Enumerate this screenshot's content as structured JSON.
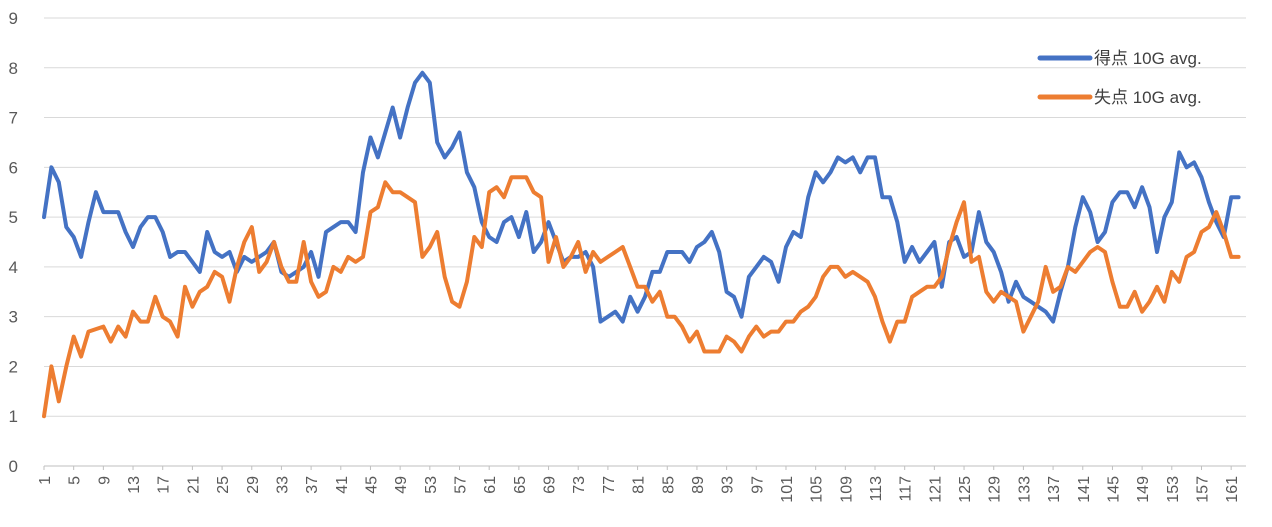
{
  "chart_data": {
    "type": "line",
    "title": "",
    "xlabel": "",
    "ylabel": "",
    "ylim": [
      0,
      9
    ],
    "yticks": [
      0,
      1,
      2,
      3,
      4,
      5,
      6,
      7,
      8,
      9
    ],
    "xlim": [
      1,
      163
    ],
    "xtick_labels": [
      "1",
      "5",
      "9",
      "13",
      "17",
      "21",
      "25",
      "29",
      "33",
      "37",
      "41",
      "45",
      "49",
      "53",
      "57",
      "61",
      "65",
      "69",
      "73",
      "77",
      "81",
      "85",
      "89",
      "93",
      "97",
      "101",
      "105",
      "109",
      "113",
      "117",
      "121",
      "125",
      "129",
      "133",
      "137",
      "141",
      "145",
      "149",
      "153",
      "157",
      "161"
    ],
    "grid": "horizontal",
    "legend_position": "top-right",
    "colors": {
      "series1": "#4472C4",
      "series2": "#ED7D31",
      "grid": "#D9D9D9",
      "axis": "#BFBFBF"
    },
    "series": [
      {
        "name": "得点 10G avg.",
        "color": "#4472C4",
        "points": [
          [
            1,
            5.0
          ],
          [
            2,
            6.0
          ],
          [
            3,
            5.7
          ],
          [
            4,
            4.8
          ],
          [
            5,
            4.6
          ],
          [
            6,
            4.2
          ],
          [
            7,
            4.9
          ],
          [
            8,
            5.5
          ],
          [
            9,
            5.1
          ],
          [
            10,
            5.1
          ],
          [
            11,
            5.1
          ],
          [
            12,
            4.7
          ],
          [
            13,
            4.4
          ],
          [
            14,
            4.8
          ],
          [
            15,
            5.0
          ],
          [
            16,
            5.0
          ],
          [
            17,
            4.7
          ],
          [
            18,
            4.2
          ],
          [
            19,
            4.3
          ],
          [
            20,
            4.3
          ],
          [
            21,
            4.1
          ],
          [
            22,
            3.9
          ],
          [
            23,
            4.7
          ],
          [
            24,
            4.3
          ],
          [
            25,
            4.2
          ],
          [
            26,
            4.3
          ],
          [
            27,
            3.9
          ],
          [
            28,
            4.2
          ],
          [
            29,
            4.1
          ],
          [
            30,
            4.2
          ],
          [
            31,
            4.3
          ],
          [
            32,
            4.5
          ],
          [
            33,
            3.9
          ],
          [
            34,
            3.8
          ],
          [
            35,
            3.9
          ],
          [
            36,
            4.0
          ],
          [
            37,
            4.3
          ],
          [
            38,
            3.8
          ],
          [
            39,
            4.7
          ],
          [
            40,
            4.8
          ],
          [
            41,
            4.9
          ],
          [
            42,
            4.9
          ],
          [
            43,
            4.7
          ],
          [
            44,
            5.9
          ],
          [
            45,
            6.6
          ],
          [
            46,
            6.2
          ],
          [
            47,
            6.7
          ],
          [
            48,
            7.2
          ],
          [
            49,
            6.6
          ],
          [
            50,
            7.2
          ],
          [
            51,
            7.7
          ],
          [
            52,
            7.9
          ],
          [
            53,
            7.7
          ],
          [
            54,
            6.5
          ],
          [
            55,
            6.2
          ],
          [
            56,
            6.4
          ],
          [
            57,
            6.7
          ],
          [
            58,
            5.9
          ],
          [
            59,
            5.6
          ],
          [
            60,
            4.9
          ],
          [
            61,
            4.6
          ],
          [
            62,
            4.5
          ],
          [
            63,
            4.9
          ],
          [
            64,
            5.0
          ],
          [
            65,
            4.6
          ],
          [
            66,
            5.1
          ],
          [
            67,
            4.3
          ],
          [
            68,
            4.5
          ],
          [
            69,
            4.9
          ],
          [
            70,
            4.5
          ],
          [
            71,
            4.1
          ],
          [
            72,
            4.2
          ],
          [
            73,
            4.2
          ],
          [
            74,
            4.3
          ],
          [
            75,
            4.0
          ],
          [
            76,
            2.9
          ],
          [
            77,
            3.0
          ],
          [
            78,
            3.1
          ],
          [
            79,
            2.9
          ],
          [
            80,
            3.4
          ],
          [
            81,
            3.1
          ],
          [
            82,
            3.4
          ],
          [
            83,
            3.9
          ],
          [
            84,
            3.9
          ],
          [
            85,
            4.3
          ],
          [
            86,
            4.3
          ],
          [
            87,
            4.3
          ],
          [
            88,
            4.1
          ],
          [
            89,
            4.4
          ],
          [
            90,
            4.5
          ],
          [
            91,
            4.7
          ],
          [
            92,
            4.3
          ],
          [
            93,
            3.5
          ],
          [
            94,
            3.4
          ],
          [
            95,
            3.0
          ],
          [
            96,
            3.8
          ],
          [
            97,
            4.0
          ],
          [
            98,
            4.2
          ],
          [
            99,
            4.1
          ],
          [
            100,
            3.7
          ],
          [
            101,
            4.4
          ],
          [
            102,
            4.7
          ],
          [
            103,
            4.6
          ],
          [
            104,
            5.4
          ],
          [
            105,
            5.9
          ],
          [
            106,
            5.7
          ],
          [
            107,
            5.9
          ],
          [
            108,
            6.2
          ],
          [
            109,
            6.1
          ],
          [
            110,
            6.2
          ],
          [
            111,
            5.9
          ],
          [
            112,
            6.2
          ],
          [
            113,
            6.2
          ],
          [
            114,
            5.4
          ],
          [
            115,
            5.4
          ],
          [
            116,
            4.9
          ],
          [
            117,
            4.1
          ],
          [
            118,
            4.4
          ],
          [
            119,
            4.1
          ],
          [
            120,
            4.3
          ],
          [
            121,
            4.5
          ],
          [
            122,
            3.6
          ],
          [
            123,
            4.5
          ],
          [
            124,
            4.6
          ],
          [
            125,
            4.2
          ],
          [
            126,
            4.3
          ],
          [
            127,
            5.1
          ],
          [
            128,
            4.5
          ],
          [
            129,
            4.3
          ],
          [
            130,
            3.9
          ],
          [
            131,
            3.3
          ],
          [
            132,
            3.7
          ],
          [
            133,
            3.4
          ],
          [
            134,
            3.3
          ],
          [
            135,
            3.2
          ],
          [
            136,
            3.1
          ],
          [
            137,
            2.9
          ],
          [
            138,
            3.5
          ],
          [
            139,
            4.0
          ],
          [
            140,
            4.8
          ],
          [
            141,
            5.4
          ],
          [
            142,
            5.1
          ],
          [
            143,
            4.5
          ],
          [
            144,
            4.7
          ],
          [
            145,
            5.3
          ],
          [
            146,
            5.5
          ],
          [
            147,
            5.5
          ],
          [
            148,
            5.2
          ],
          [
            149,
            5.6
          ],
          [
            150,
            5.2
          ],
          [
            151,
            4.3
          ],
          [
            152,
            5.0
          ],
          [
            153,
            5.3
          ],
          [
            154,
            6.3
          ],
          [
            155,
            6.0
          ],
          [
            156,
            6.1
          ],
          [
            157,
            5.8
          ],
          [
            158,
            5.3
          ],
          [
            159,
            4.9
          ],
          [
            160,
            4.6
          ],
          [
            161,
            5.4
          ],
          [
            162,
            5.4
          ]
        ]
      },
      {
        "name": "失点 10G avg.",
        "color": "#ED7D31",
        "points": [
          [
            1,
            1.0
          ],
          [
            2,
            2.0
          ],
          [
            3,
            1.3
          ],
          [
            4,
            2.0
          ],
          [
            5,
            2.6
          ],
          [
            6,
            2.2
          ],
          [
            7,
            2.7
          ],
          [
            8,
            2.75
          ],
          [
            9,
            2.8
          ],
          [
            10,
            2.5
          ],
          [
            11,
            2.8
          ],
          [
            12,
            2.6
          ],
          [
            13,
            3.1
          ],
          [
            14,
            2.9
          ],
          [
            15,
            2.9
          ],
          [
            16,
            3.4
          ],
          [
            17,
            3.0
          ],
          [
            18,
            2.9
          ],
          [
            19,
            2.6
          ],
          [
            20,
            3.6
          ],
          [
            21,
            3.2
          ],
          [
            22,
            3.5
          ],
          [
            23,
            3.6
          ],
          [
            24,
            3.9
          ],
          [
            25,
            3.8
          ],
          [
            26,
            3.3
          ],
          [
            27,
            4.0
          ],
          [
            28,
            4.5
          ],
          [
            29,
            4.8
          ],
          [
            30,
            3.9
          ],
          [
            31,
            4.1
          ],
          [
            32,
            4.5
          ],
          [
            33,
            4.0
          ],
          [
            34,
            3.7
          ],
          [
            35,
            3.7
          ],
          [
            36,
            4.5
          ],
          [
            37,
            3.7
          ],
          [
            38,
            3.4
          ],
          [
            39,
            3.5
          ],
          [
            40,
            4.0
          ],
          [
            41,
            3.9
          ],
          [
            42,
            4.2
          ],
          [
            43,
            4.1
          ],
          [
            44,
            4.2
          ],
          [
            45,
            5.1
          ],
          [
            46,
            5.2
          ],
          [
            47,
            5.7
          ],
          [
            48,
            5.5
          ],
          [
            49,
            5.5
          ],
          [
            50,
            5.4
          ],
          [
            51,
            5.3
          ],
          [
            52,
            4.2
          ],
          [
            53,
            4.4
          ],
          [
            54,
            4.7
          ],
          [
            55,
            3.8
          ],
          [
            56,
            3.3
          ],
          [
            57,
            3.2
          ],
          [
            58,
            3.7
          ],
          [
            59,
            4.6
          ],
          [
            60,
            4.4
          ],
          [
            61,
            5.5
          ],
          [
            62,
            5.6
          ],
          [
            63,
            5.4
          ],
          [
            64,
            5.8
          ],
          [
            65,
            5.8
          ],
          [
            66,
            5.8
          ],
          [
            67,
            5.5
          ],
          [
            68,
            5.4
          ],
          [
            69,
            4.1
          ],
          [
            70,
            4.6
          ],
          [
            71,
            4.0
          ],
          [
            72,
            4.2
          ],
          [
            73,
            4.5
          ],
          [
            74,
            3.9
          ],
          [
            75,
            4.3
          ],
          [
            76,
            4.1
          ],
          [
            77,
            4.2
          ],
          [
            78,
            4.3
          ],
          [
            79,
            4.4
          ],
          [
            80,
            4.0
          ],
          [
            81,
            3.6
          ],
          [
            82,
            3.6
          ],
          [
            83,
            3.3
          ],
          [
            84,
            3.5
          ],
          [
            85,
            3.0
          ],
          [
            86,
            3.0
          ],
          [
            87,
            2.8
          ],
          [
            88,
            2.5
          ],
          [
            89,
            2.7
          ],
          [
            90,
            2.3
          ],
          [
            91,
            2.3
          ],
          [
            92,
            2.3
          ],
          [
            93,
            2.6
          ],
          [
            94,
            2.5
          ],
          [
            95,
            2.3
          ],
          [
            96,
            2.6
          ],
          [
            97,
            2.8
          ],
          [
            98,
            2.6
          ],
          [
            99,
            2.7
          ],
          [
            100,
            2.7
          ],
          [
            101,
            2.9
          ],
          [
            102,
            2.9
          ],
          [
            103,
            3.1
          ],
          [
            104,
            3.2
          ],
          [
            105,
            3.4
          ],
          [
            106,
            3.8
          ],
          [
            107,
            4.0
          ],
          [
            108,
            4.0
          ],
          [
            109,
            3.8
          ],
          [
            110,
            3.9
          ],
          [
            111,
            3.8
          ],
          [
            112,
            3.7
          ],
          [
            113,
            3.4
          ],
          [
            114,
            2.9
          ],
          [
            115,
            2.5
          ],
          [
            116,
            2.9
          ],
          [
            117,
            2.9
          ],
          [
            118,
            3.4
          ],
          [
            119,
            3.5
          ],
          [
            120,
            3.6
          ],
          [
            121,
            3.6
          ],
          [
            122,
            3.8
          ],
          [
            123,
            4.4
          ],
          [
            124,
            4.9
          ],
          [
            125,
            5.3
          ],
          [
            126,
            4.1
          ],
          [
            127,
            4.2
          ],
          [
            128,
            3.5
          ],
          [
            129,
            3.3
          ],
          [
            130,
            3.5
          ],
          [
            131,
            3.4
          ],
          [
            132,
            3.3
          ],
          [
            133,
            2.7
          ],
          [
            134,
            3.0
          ],
          [
            135,
            3.3
          ],
          [
            136,
            4.0
          ],
          [
            137,
            3.5
          ],
          [
            138,
            3.6
          ],
          [
            139,
            4.0
          ],
          [
            140,
            3.9
          ],
          [
            141,
            4.1
          ],
          [
            142,
            4.3
          ],
          [
            143,
            4.4
          ],
          [
            144,
            4.3
          ],
          [
            145,
            3.7
          ],
          [
            146,
            3.2
          ],
          [
            147,
            3.2
          ],
          [
            148,
            3.5
          ],
          [
            149,
            3.1
          ],
          [
            150,
            3.3
          ],
          [
            151,
            3.6
          ],
          [
            152,
            3.3
          ],
          [
            153,
            3.9
          ],
          [
            154,
            3.7
          ],
          [
            155,
            4.2
          ],
          [
            156,
            4.3
          ],
          [
            157,
            4.7
          ],
          [
            158,
            4.8
          ],
          [
            159,
            5.1
          ],
          [
            160,
            4.7
          ],
          [
            161,
            4.2
          ],
          [
            162,
            4.2
          ]
        ]
      }
    ]
  }
}
